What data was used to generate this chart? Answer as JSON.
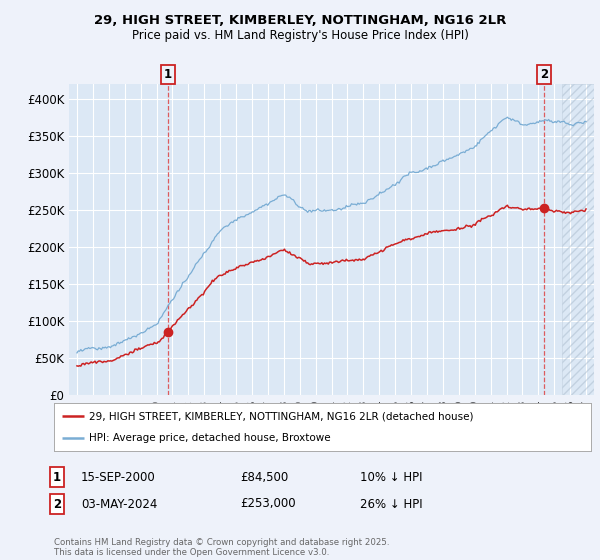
{
  "title_line1": "29, HIGH STREET, KIMBERLEY, NOTTINGHAM, NG16 2LR",
  "title_line2": "Price paid vs. HM Land Registry's House Price Index (HPI)",
  "background_color": "#eef2fa",
  "plot_bg_color": "#dce8f5",
  "grid_color": "#ffffff",
  "hpi_color": "#7aadd4",
  "property_color": "#cc2222",
  "sale1_year": 2000.71,
  "sale1_price": 84500,
  "sale2_year": 2024.34,
  "sale2_price": 253000,
  "vline_color": "#dd4444",
  "legend_property": "29, HIGH STREET, KIMBERLEY, NOTTINGHAM, NG16 2LR (detached house)",
  "legend_hpi": "HPI: Average price, detached house, Broxtowe",
  "note1_label": "1",
  "note1_date": "15-SEP-2000",
  "note1_price": "£84,500",
  "note1_hpi": "10% ↓ HPI",
  "note2_label": "2",
  "note2_date": "03-MAY-2024",
  "note2_price": "£253,000",
  "note2_hpi": "26% ↓ HPI",
  "footer": "Contains HM Land Registry data © Crown copyright and database right 2025.\nThis data is licensed under the Open Government Licence v3.0.",
  "ylim": [
    0,
    420000
  ],
  "xlim_start": 1994.5,
  "xlim_end": 2027.5,
  "yticks": [
    0,
    50000,
    100000,
    150000,
    200000,
    250000,
    300000,
    350000,
    400000
  ],
  "ytick_labels": [
    "£0",
    "£50K",
    "£100K",
    "£150K",
    "£200K",
    "£250K",
    "£300K",
    "£350K",
    "£400K"
  ],
  "xtick_years": [
    1995,
    1996,
    1997,
    1998,
    1999,
    2000,
    2001,
    2002,
    2003,
    2004,
    2005,
    2006,
    2007,
    2008,
    2009,
    2010,
    2011,
    2012,
    2013,
    2014,
    2015,
    2016,
    2017,
    2018,
    2019,
    2020,
    2021,
    2022,
    2023,
    2024,
    2025,
    2026,
    2027
  ],
  "hpi_seed": 42,
  "prop_seed": 17
}
